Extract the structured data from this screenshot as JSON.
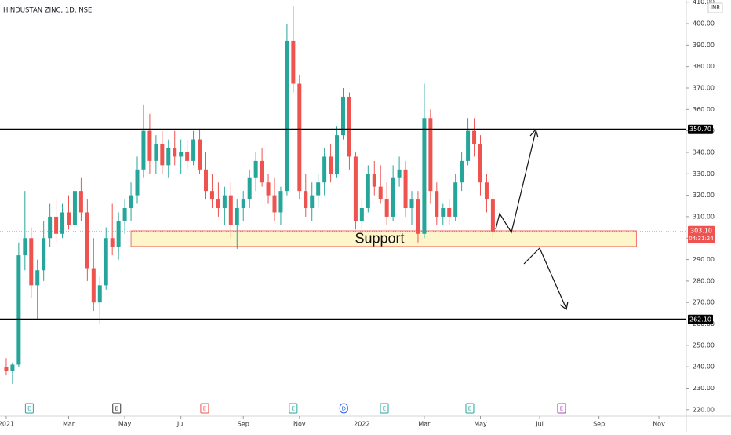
{
  "chart_data": {
    "type": "candlestick",
    "title": "HINDUSTAN ZINC, 1D, NSE",
    "currency": "INR",
    "up_color": "#26a69a",
    "down_color": "#ef5350",
    "ohlc": [
      [
        240,
        244,
        236,
        238
      ],
      [
        238,
        242,
        232,
        241
      ],
      [
        241,
        298,
        240,
        292
      ],
      [
        292,
        322,
        285,
        300
      ],
      [
        300,
        305,
        272,
        278
      ],
      [
        278,
        290,
        262,
        285
      ],
      [
        285,
        308,
        280,
        300
      ],
      [
        300,
        316,
        296,
        310
      ],
      [
        310,
        318,
        298,
        302
      ],
      [
        302,
        316,
        300,
        312
      ],
      [
        312,
        320,
        304,
        306
      ],
      [
        306,
        326,
        302,
        322
      ],
      [
        322,
        328,
        308,
        312
      ],
      [
        312,
        318,
        280,
        286
      ],
      [
        286,
        300,
        266,
        270
      ],
      [
        270,
        282,
        260,
        278
      ],
      [
        278,
        305,
        276,
        300
      ],
      [
        300,
        316,
        292,
        296
      ],
      [
        296,
        312,
        290,
        308
      ],
      [
        308,
        318,
        302,
        314
      ],
      [
        314,
        326,
        308,
        320
      ],
      [
        320,
        338,
        316,
        332
      ],
      [
        332,
        362,
        328,
        350
      ],
      [
        350,
        358,
        330,
        336
      ],
      [
        336,
        348,
        330,
        344
      ],
      [
        344,
        350,
        330,
        334
      ],
      [
        334,
        346,
        328,
        342
      ],
      [
        342,
        350,
        334,
        338
      ],
      [
        338,
        346,
        330,
        340
      ],
      [
        340,
        346,
        332,
        336
      ],
      [
        336,
        350,
        334,
        346
      ],
      [
        346,
        351,
        330,
        332
      ],
      [
        332,
        340,
        318,
        322
      ],
      [
        322,
        330,
        314,
        318
      ],
      [
        318,
        326,
        310,
        314
      ],
      [
        314,
        324,
        306,
        320
      ],
      [
        320,
        326,
        300,
        306
      ],
      [
        306,
        318,
        295,
        314
      ],
      [
        314,
        322,
        308,
        318
      ],
      [
        318,
        332,
        314,
        328
      ],
      [
        328,
        340,
        322,
        336
      ],
      [
        336,
        342,
        324,
        326
      ],
      [
        326,
        330,
        316,
        320
      ],
      [
        320,
        328,
        308,
        312
      ],
      [
        312,
        324,
        306,
        322
      ],
      [
        322,
        400,
        320,
        392
      ],
      [
        392,
        408,
        368,
        372
      ],
      [
        372,
        376,
        318,
        322
      ],
      [
        322,
        330,
        310,
        314
      ],
      [
        314,
        326,
        308,
        320
      ],
      [
        320,
        330,
        314,
        326
      ],
      [
        326,
        342,
        320,
        338
      ],
      [
        338,
        344,
        326,
        330
      ],
      [
        330,
        352,
        328,
        348
      ],
      [
        348,
        370,
        346,
        366
      ],
      [
        366,
        368,
        332,
        338
      ],
      [
        338,
        340,
        304,
        308
      ],
      [
        308,
        318,
        304,
        314
      ],
      [
        314,
        334,
        312,
        330
      ],
      [
        330,
        336,
        320,
        324
      ],
      [
        324,
        334,
        316,
        318
      ],
      [
        318,
        326,
        306,
        310
      ],
      [
        310,
        334,
        308,
        328
      ],
      [
        328,
        338,
        324,
        332
      ],
      [
        332,
        336,
        310,
        314
      ],
      [
        314,
        322,
        306,
        318
      ],
      [
        318,
        322,
        298,
        302
      ],
      [
        302,
        372,
        300,
        356
      ],
      [
        356,
        360,
        316,
        322
      ],
      [
        322,
        326,
        306,
        310
      ],
      [
        310,
        316,
        306,
        314
      ],
      [
        314,
        318,
        306,
        310
      ],
      [
        310,
        330,
        308,
        326
      ],
      [
        326,
        340,
        322,
        336
      ],
      [
        336,
        356,
        334,
        350
      ],
      [
        350,
        356,
        338,
        344
      ],
      [
        344,
        348,
        320,
        326
      ],
      [
        326,
        330,
        312,
        318
      ],
      [
        318,
        322,
        300,
        303.1
      ]
    ],
    "xlim": [
      -1,
      109
    ],
    "xticks": [
      {
        "value": 0,
        "label": "2021"
      },
      {
        "value": 10,
        "label": "Mar"
      },
      {
        "value": 19,
        "label": "May"
      },
      {
        "value": 28,
        "label": "Jul"
      },
      {
        "value": 38,
        "label": "Sep"
      },
      {
        "value": 47,
        "label": "Nov"
      },
      {
        "value": 57,
        "label": "2022"
      },
      {
        "value": 67,
        "label": "Mar"
      },
      {
        "value": 76,
        "label": "May"
      },
      {
        "value": 85.5,
        "label": "Jul"
      },
      {
        "value": 95,
        "label": "Sep"
      },
      {
        "value": 104.6,
        "label": "Nov"
      }
    ],
    "ylim": [
      217,
      411
    ],
    "yticks": [
      {
        "value": 220,
        "label": "220.00"
      },
      {
        "value": 230,
        "label": "230.00"
      },
      {
        "value": 240,
        "label": "240.00"
      },
      {
        "value": 250,
        "label": "250.00"
      },
      {
        "value": 260,
        "label": "260.00"
      },
      {
        "value": 270,
        "label": "270.00"
      },
      {
        "value": 280,
        "label": "280.00"
      },
      {
        "value": 290,
        "label": "290.00"
      },
      {
        "value": 300,
        "label": "300.00"
      },
      {
        "value": 310,
        "label": "310.00"
      },
      {
        "value": 320,
        "label": "320.00"
      },
      {
        "value": 330,
        "label": "330.00"
      },
      {
        "value": 340,
        "label": "340.00"
      },
      {
        "value": 350,
        "label": "350.00"
      },
      {
        "value": 360,
        "label": "360.00"
      },
      {
        "value": 370,
        "label": "370.00"
      },
      {
        "value": 380,
        "label": "380.00"
      },
      {
        "value": 390,
        "label": "390.00"
      },
      {
        "value": 400,
        "label": "400.00"
      },
      {
        "value": 410,
        "label": "410.00"
      }
    ],
    "levels": [
      {
        "value": 350.7,
        "label": "350.70"
      },
      {
        "value": 262.1,
        "label": "262.10"
      }
    ],
    "last_price": {
      "value": 303.1,
      "label": "303.10",
      "countdown": "04:31:24"
    },
    "zone": {
      "low": 296.1,
      "high": 303.4,
      "x_start": 20,
      "x_end": 101,
      "label": "Support"
    },
    "events": [
      {
        "x": 3.7,
        "label": "E",
        "color": "#26a69a"
      },
      {
        "x": 17.7,
        "label": "E",
        "color": "#333333"
      },
      {
        "x": 31.8,
        "label": "E",
        "color": "#ef5350"
      },
      {
        "x": 46,
        "label": "E",
        "color": "#26a69a"
      },
      {
        "x": 54.1,
        "label": "D",
        "color": "#2962ff"
      },
      {
        "x": 60.6,
        "label": "E",
        "color": "#26a69a"
      },
      {
        "x": 74.3,
        "label": "E",
        "color": "#26a69a"
      },
      {
        "x": 89,
        "label": "E",
        "color": "#ab47bc"
      }
    ]
  }
}
